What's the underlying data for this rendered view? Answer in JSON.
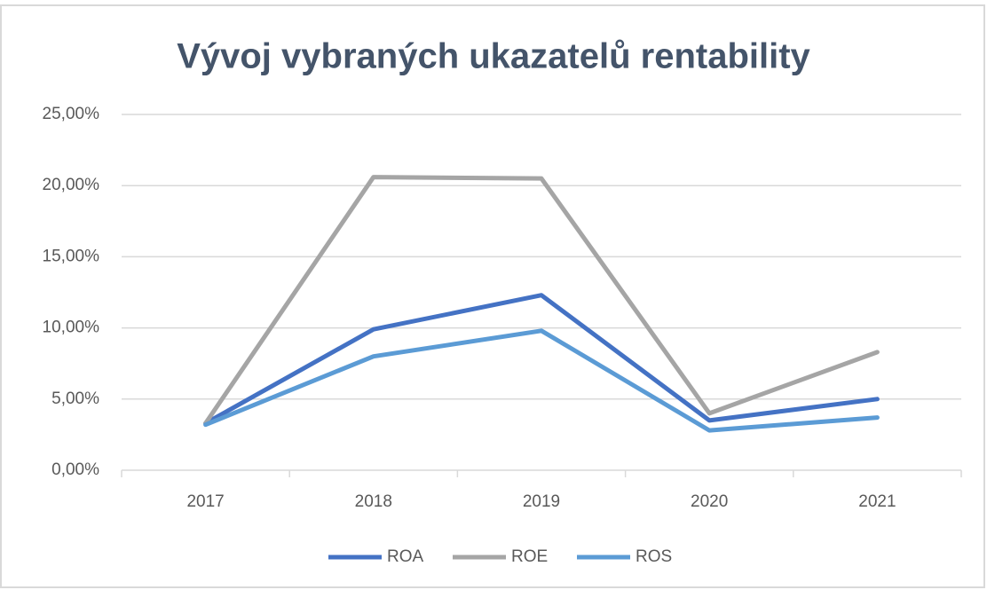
{
  "chart_data": {
    "type": "line",
    "title": "Vývoj vybraných ukazatelů rentability",
    "categories": [
      "2017",
      "2018",
      "2019",
      "2020",
      "2021"
    ],
    "series": [
      {
        "name": "ROA",
        "color": "#4472c4",
        "values": [
          3.3,
          9.9,
          12.3,
          3.5,
          5.0
        ]
      },
      {
        "name": "ROE",
        "color": "#a5a5a5",
        "values": [
          3.3,
          20.6,
          20.5,
          4.0,
          8.3
        ]
      },
      {
        "name": "ROS",
        "color": "#5b9bd5",
        "values": [
          3.2,
          8.0,
          9.8,
          2.8,
          3.7
        ]
      }
    ],
    "ylim": [
      0,
      25
    ],
    "yticks": [
      {
        "value": 0,
        "label": "0,00%"
      },
      {
        "value": 5,
        "label": "5,00%"
      },
      {
        "value": 10,
        "label": "10,00%"
      },
      {
        "value": 15,
        "label": "15,00%"
      },
      {
        "value": 20,
        "label": "20,00%"
      },
      {
        "value": 25,
        "label": "25,00%"
      }
    ],
    "grid": true,
    "legend": "bottom"
  }
}
